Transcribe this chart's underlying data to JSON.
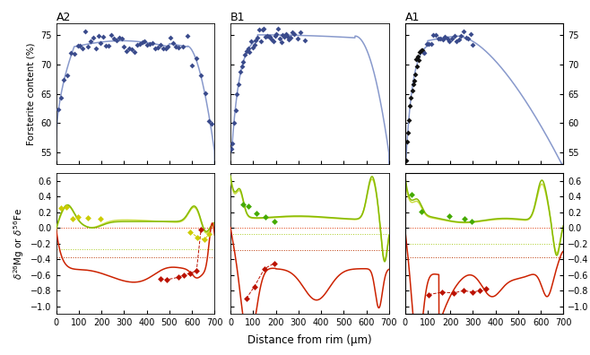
{
  "panels": [
    "A2",
    "B1",
    "A1"
  ],
  "fo_ylim": [
    53,
    77
  ],
  "fo_yticks": [
    55,
    60,
    65,
    70,
    75
  ],
  "iso_ylim": [
    -1.1,
    0.7
  ],
  "iso_yticks": [
    -1.0,
    -0.8,
    -0.6,
    -0.4,
    -0.2,
    0.0,
    0.2,
    0.4,
    0.6
  ],
  "xlim": [
    0,
    700
  ],
  "xticks": [
    0,
    100,
    200,
    300,
    400,
    500,
    600,
    700
  ],
  "line_color_fo": "#8899cc",
  "scatter_color_fo_blue": "#3a4b8c",
  "scatter_color_fo_black": "#111111",
  "line_color_Mg_dark": "#88bb00",
  "line_color_Mg_light": "#ccdd44",
  "line_color_Fe": "#cc2200",
  "scatter_color_Mg": "#44aa00",
  "scatter_color_Mg_yellow": "#cccc00",
  "scatter_color_Fe": "#bb1100",
  "dot_color_red": "#ee3300",
  "dot_color_green": "#55bb00",
  "dashed_Mg_ref1": 0.0,
  "dashed_Fe_ref1": 0.0,
  "dashed_Mg_A2": -0.27,
  "dashed_Fe_A2": -0.38,
  "dashed_Mg_B1": -0.08,
  "dashed_Fe_B1": -0.28,
  "dashed_Mg_A1": -0.2,
  "dashed_Fe_A1": -0.38,
  "xlabel": "Distance from rim (μm)",
  "ylabel_fo": "Forsterite content (%)",
  "background_color": "#ffffff"
}
